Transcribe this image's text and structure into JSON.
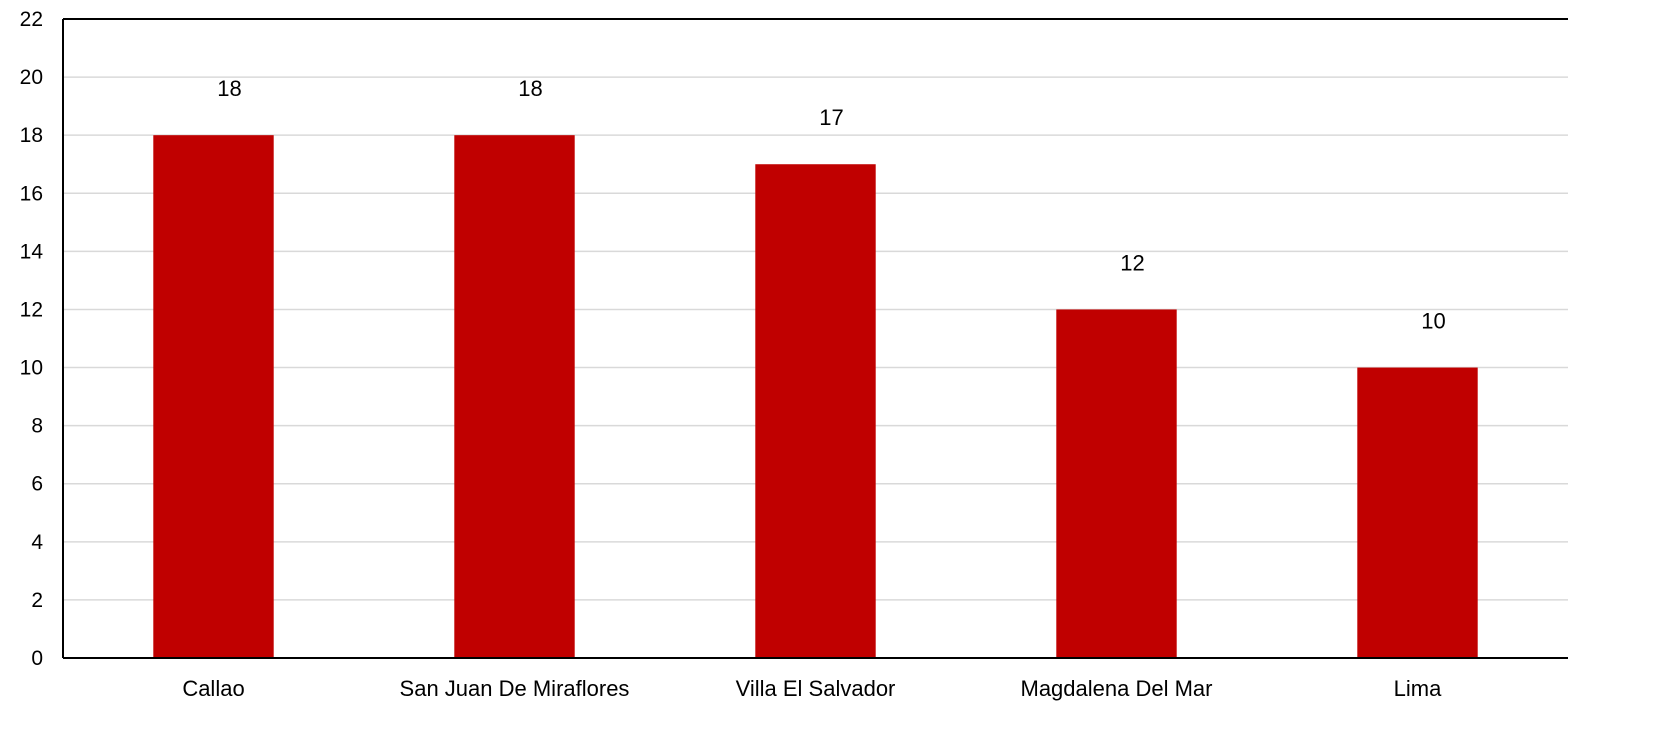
{
  "chart_data": {
    "type": "bar",
    "title": "",
    "xlabel": "",
    "ylabel": "",
    "categories": [
      "Callao",
      "San Juan De Miraflores",
      "Villa El Salvador",
      "Magdalena Del Mar",
      "Lima"
    ],
    "values": [
      18,
      18,
      17,
      12,
      10
    ],
    "data_labels": [
      "18",
      "18",
      "17",
      "12",
      "10"
    ],
    "ylim": [
      0,
      22
    ],
    "yticks": [
      0,
      2,
      4,
      6,
      8,
      10,
      12,
      14,
      16,
      18,
      20,
      22
    ],
    "grid": true,
    "legend": "none",
    "colors": {
      "bar": "#c00000",
      "grid": "#d9d9d9",
      "axis": "#000000"
    }
  }
}
